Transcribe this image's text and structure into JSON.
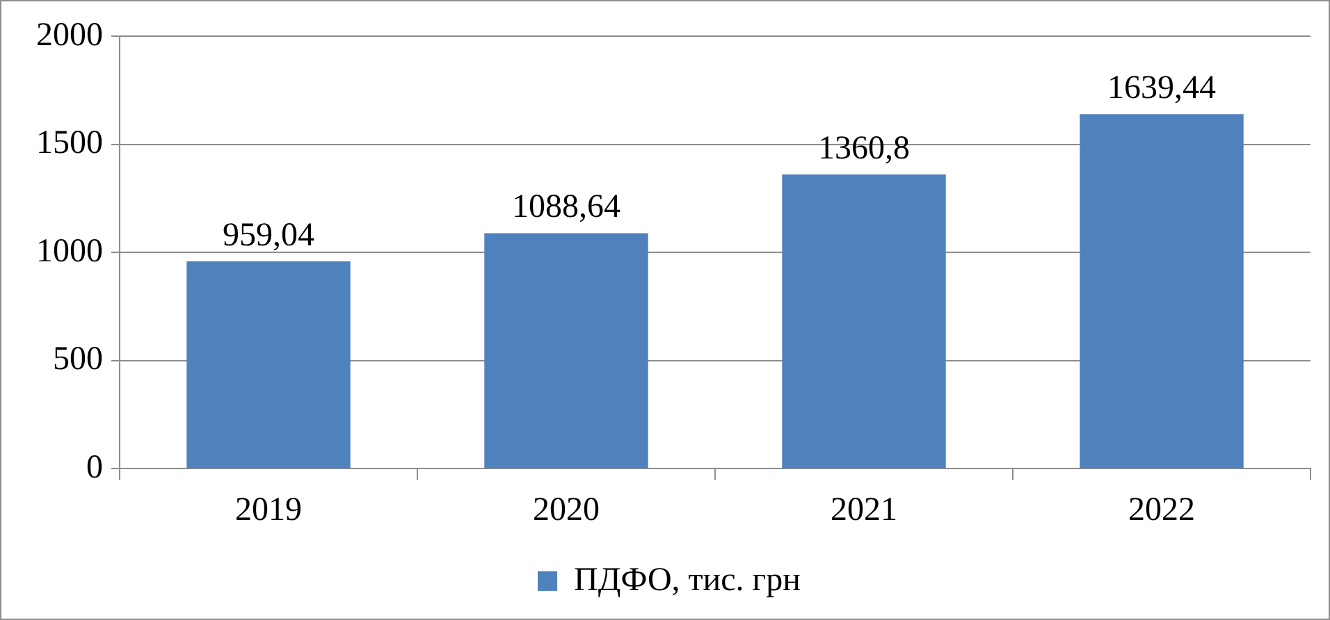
{
  "chart_data": {
    "type": "bar",
    "categories": [
      "2019",
      "2020",
      "2021",
      "2022"
    ],
    "series": [
      {
        "name": "ПДФО, тис. грн",
        "color": "#4f81bd",
        "values": [
          959.04,
          1088.64,
          1360.8,
          1639.44
        ],
        "value_labels": [
          "959,04",
          "1088,64",
          "1360,8",
          "1639,44"
        ]
      }
    ],
    "ylim": [
      0,
      2000
    ],
    "yticks": [
      0,
      500,
      1000,
      1500,
      2000
    ],
    "grid": "y",
    "legend": "bottom"
  }
}
